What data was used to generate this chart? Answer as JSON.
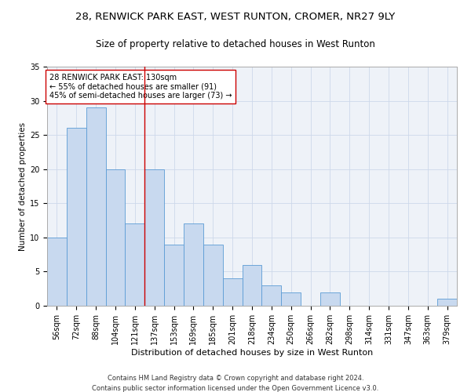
{
  "title1": "28, RENWICK PARK EAST, WEST RUNTON, CROMER, NR27 9LY",
  "title2": "Size of property relative to detached houses in West Runton",
  "xlabel": "Distribution of detached houses by size in West Runton",
  "ylabel": "Number of detached properties",
  "categories": [
    "56sqm",
    "72sqm",
    "88sqm",
    "104sqm",
    "121sqm",
    "137sqm",
    "153sqm",
    "169sqm",
    "185sqm",
    "201sqm",
    "218sqm",
    "234sqm",
    "250sqm",
    "266sqm",
    "282sqm",
    "298sqm",
    "314sqm",
    "331sqm",
    "347sqm",
    "363sqm",
    "379sqm"
  ],
  "values": [
    10,
    26,
    29,
    20,
    12,
    20,
    9,
    12,
    9,
    4,
    6,
    3,
    2,
    0,
    2,
    0,
    0,
    0,
    0,
    0,
    1
  ],
  "bar_color": "#c8d9ef",
  "bar_edge_color": "#5b9bd5",
  "vline_x_index": 5,
  "vline_color": "#cc0000",
  "annotation_text": "28 RENWICK PARK EAST: 130sqm\n← 55% of detached houses are smaller (91)\n45% of semi-detached houses are larger (73) →",
  "annotation_box_color": "white",
  "annotation_box_edge_color": "#cc0000",
  "ylim": [
    0,
    35
  ],
  "yticks": [
    0,
    5,
    10,
    15,
    20,
    25,
    30,
    35
  ],
  "footnote": "Contains HM Land Registry data © Crown copyright and database right 2024.\nContains public sector information licensed under the Open Government Licence v3.0.",
  "title1_fontsize": 9.5,
  "title2_fontsize": 8.5,
  "xlabel_fontsize": 8,
  "ylabel_fontsize": 7.5,
  "tick_fontsize": 7,
  "annot_fontsize": 7,
  "footnote_fontsize": 6
}
